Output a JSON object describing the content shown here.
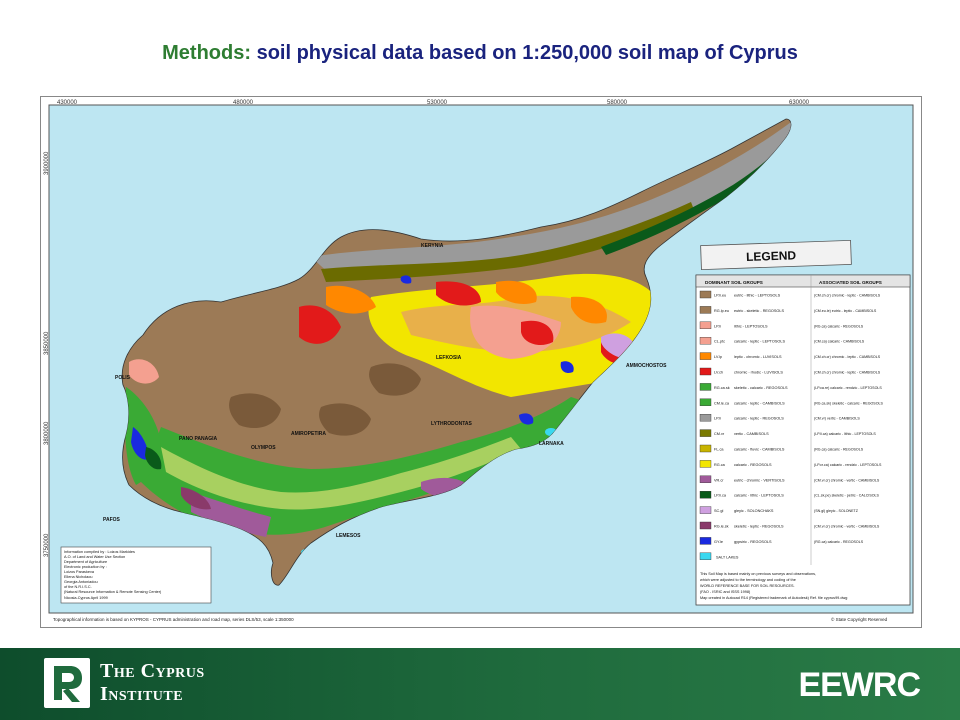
{
  "title": {
    "lead": "Methods:",
    "rest": " soil physical data based on 1:250,000 soil map of Cyprus"
  },
  "map": {
    "grid_top": [
      "430000",
      "480000",
      "530000",
      "580000",
      "630000"
    ],
    "grid_left": [
      "3900000",
      "3850000",
      "3800000",
      "3750000"
    ],
    "places": {
      "kerynia": "KERYNIA",
      "lefkosia": "LEFKOSIA",
      "ammochostos": "AMMOCHOSTOS",
      "polis": "POLIS",
      "pano_panagia": "PANO PANAGIA",
      "amiropetira": "AMIROPETIRA",
      "olympos": "OLYMPOS",
      "lythrodontas": "LYTHRODONTAS",
      "larnaka": "LARNAKA",
      "pafos": "PAFOS",
      "lemesos": "LEMESOS"
    },
    "info_box": [
      "Information compiled by : Loizos Markides",
      "A.O. of Land and Water Use Section",
      "Department of Agriculture",
      "Electronic production by :",
      "Loizos Paraskeva",
      "Ellena Nicholaou",
      "Georgia Antoniadou",
      "of the N.R.I.S.C.",
      "(Natural Resource Information & Remote Sensing Center)",
      "Nicosia-Cyprus      April 1999"
    ],
    "source_note": "Topographical information is based on KYPROS - CYPRUS administration and road map, series DLS/53, scale 1:350000",
    "copyright": "© State Copyright Reserved",
    "legend": {
      "title": "LEGEND",
      "col_dominant": "DOMINANT SOIL GROUPS",
      "col_associated": "ASSOCIATED SOIL GROUPS",
      "entries": [
        {
          "color": "#9c7a56",
          "codes": "LP.li.eu",
          "dominant": "eutric - lithic - LEPTOSOLS",
          "associated": "(CM.ch.cr) chromic - leptic - CAMBISOLS"
        },
        {
          "color": "#9c7a56",
          "codes": "RG.lp.eu",
          "dominant": "eutric - skeletic - REGOSOLS",
          "associated": "(CM.eu.le) eutric - leptic - CAMBISOLS"
        },
        {
          "color": "#f4a090",
          "codes": "LP.li",
          "dominant": "lithic - LEPTOSOLS",
          "associated": "(RG.ca) calcaric - REGOSOLS"
        },
        {
          "color": "#f4a090",
          "codes": "CL.ptc",
          "dominant": "calcaric - leptic - LEPTOSOLS",
          "associated": "(CM.ca) calcaric - CAMBISOLS"
        },
        {
          "color": "#ff8800",
          "codes": "LV.lp",
          "dominant": "leptic - chromic - LUVISOLS",
          "associated": "(CM.ch.cr) chromic - leptic - CAMBISOLS"
        },
        {
          "color": "#e21a1a",
          "codes": "LV.ch",
          "dominant": "chromic - rhodic - LUVISOLS",
          "associated": "(CM.ch.cr) chromic - leptic - CAMBISOLS"
        },
        {
          "color": "#3aaa35",
          "codes": "RG.ca.sk",
          "dominant": "skeletic - calcaric - REGOSOLS",
          "associated": "(LP.ca.re) calcaric - rendzic - LEPTOSOLS"
        },
        {
          "color": "#3aaa35",
          "codes": "CM.le.ca",
          "dominant": "calcaric - leptic - CAMBISOLS",
          "associated": "(RG.ca.sk) skeletic - calcaric - REGOSOLS"
        },
        {
          "color": "#9a9a9a",
          "codes": "LP.li",
          "dominant": "calcaric - leptic - REGOSOLS",
          "associated": "(CM.vr) vertic - CAMBISOLS"
        },
        {
          "color": "#7a7a00",
          "codes": "CM.vr",
          "dominant": "vertic - CAMBISOLS",
          "associated": "(LP.li.ca) calcaric - lithic - LEPTOSOLS"
        },
        {
          "color": "#c8b400",
          "codes": "FL.ca",
          "dominant": "calcaric - fluvic - CAMBISOLS",
          "associated": "(RG.ca) calcaric - REGOSOLS"
        },
        {
          "color": "#f2e600",
          "codes": "RG.ca",
          "dominant": "calcaric - REGOSOLS",
          "associated": "(LP.cr.ca) calcaric - rendzic - LEPTOSOLS"
        },
        {
          "color": "#a05a9a",
          "codes": "VR.cr",
          "dominant": "eutric - chromic - VERTISOLS",
          "associated": "(CM.vr.cr) chromic - vertic - CAMBISOLS"
        },
        {
          "color": "#0a5a1a",
          "codes": "LP.li.ca",
          "dominant": "calcaric - lithic - LEPTOSOLS",
          "associated": "(CL.sk.pe) skeletic - petric - CALCISOLS"
        },
        {
          "color": "#cfa0e0",
          "codes": "SC.gl",
          "dominant": "gleyic - SOLONCHAKS",
          "associated": "(SN.gl) gleyic - SOLONETZ"
        },
        {
          "color": "#8a3a6a",
          "codes": "RG.le.sk",
          "dominant": "skeletic - leptic - REGOSOLS",
          "associated": "(CM.vr.cr) chromic - vertic - CAMBISOLS"
        },
        {
          "color": "#1a2ae0",
          "codes": "GY.le",
          "dominant": "gypsiric - REGOSOLS",
          "associated": "(RG.ca) calcaric - REGOSOLS"
        },
        {
          "color": "#3ad8f0",
          "codes": "",
          "dominant": "SALT LAKES",
          "associated": ""
        }
      ],
      "note": [
        "This Soil Map is based mainly on previous surveys and observations,",
        "which were adjusted to the terminology and coding of the",
        "WORLD REFERENCE BASE FOR SOIL RESOURCES.",
        "(FAO - ISRIC and ISSS 1998)",
        "Map created in Autocad R14 (Registered trademark of Autodesk)  Ref. file cyprus99.dwg"
      ]
    }
  },
  "footer": {
    "org_line1": "The Cyprus",
    "org_line2": "Institute",
    "brand": "EEWRC"
  }
}
